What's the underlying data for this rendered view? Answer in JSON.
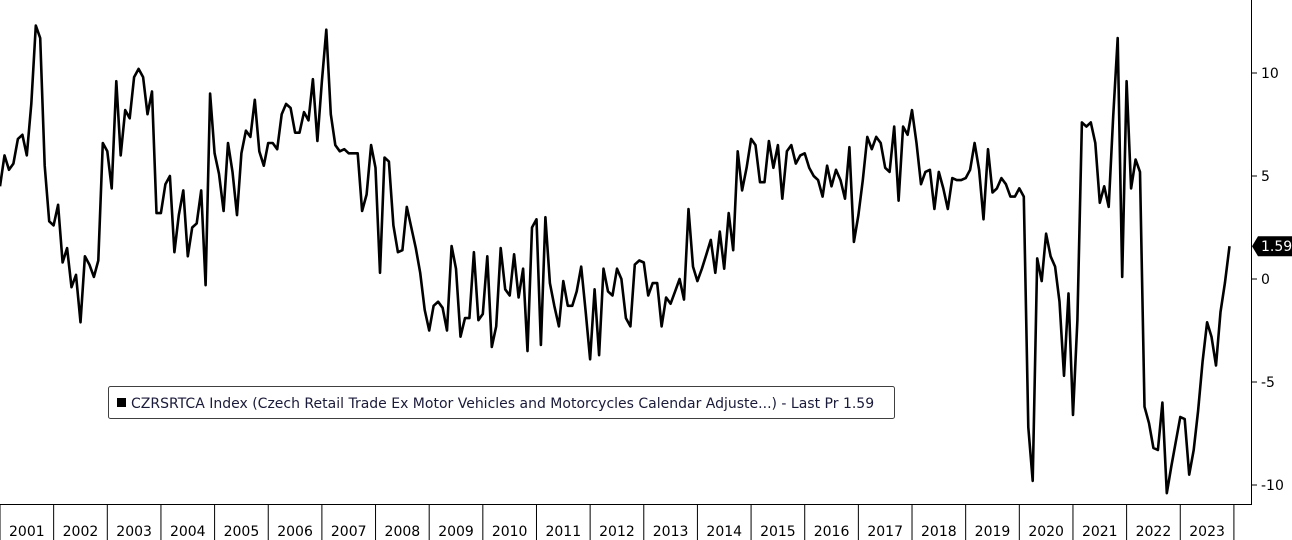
{
  "chart_data": {
    "type": "line",
    "title": "",
    "xlabel": "",
    "ylabel": "",
    "ylim": [
      -11,
      13.5
    ],
    "xlim": [
      2001.0,
      2024.3
    ],
    "grid": false,
    "y_ticks": [
      10,
      5,
      0,
      -5,
      -10
    ],
    "x_ticks": [
      "2001",
      "2002",
      "2003",
      "2004",
      "2005",
      "2006",
      "2007",
      "2008",
      "2009",
      "2010",
      "2011",
      "2012",
      "2013",
      "2014",
      "2015",
      "2016",
      "2017",
      "2018",
      "2019",
      "2020",
      "2021",
      "2022",
      "2023"
    ],
    "legend": {
      "placement": "lower-left",
      "label": "CZRSRTCA Index (Czech Retail Trade Ex Motor Vehicles and Motorcycles Calendar Adjuste...) - Last Pr 1.59"
    },
    "last_value_label": "1.59",
    "last_value": 1.59,
    "series": [
      {
        "name": "CZRSRTCA Index (Czech Retail Trade Ex Motor Vehicles and Motorcycles Calendar Adjuste...)",
        "color": "#000000",
        "x": [
          2001.0,
          2001.083,
          2001.167,
          2001.25,
          2001.333,
          2001.417,
          2001.5,
          2001.583,
          2001.667,
          2001.75,
          2001.833,
          2001.917,
          2002.0,
          2002.083,
          2002.167,
          2002.25,
          2002.333,
          2002.417,
          2002.5,
          2002.583,
          2002.667,
          2002.75,
          2002.833,
          2002.917,
          2003.0,
          2003.083,
          2003.167,
          2003.25,
          2003.333,
          2003.417,
          2003.5,
          2003.583,
          2003.667,
          2003.75,
          2003.833,
          2003.917,
          2004.0,
          2004.083,
          2004.167,
          2004.25,
          2004.333,
          2004.417,
          2004.5,
          2004.583,
          2004.667,
          2004.75,
          2004.833,
          2004.917,
          2005.0,
          2005.083,
          2005.167,
          2005.25,
          2005.333,
          2005.417,
          2005.5,
          2005.583,
          2005.667,
          2005.75,
          2005.833,
          2005.917,
          2006.0,
          2006.083,
          2006.167,
          2006.25,
          2006.333,
          2006.417,
          2006.5,
          2006.583,
          2006.667,
          2006.75,
          2006.833,
          2006.917,
          2007.0,
          2007.083,
          2007.167,
          2007.25,
          2007.333,
          2007.417,
          2007.5,
          2007.583,
          2007.667,
          2007.75,
          2007.833,
          2007.917,
          2008.0,
          2008.083,
          2008.167,
          2008.25,
          2008.333,
          2008.417,
          2008.5,
          2008.583,
          2008.667,
          2008.75,
          2008.833,
          2008.917,
          2009.0,
          2009.083,
          2009.167,
          2009.25,
          2009.333,
          2009.417,
          2009.5,
          2009.583,
          2009.667,
          2009.75,
          2009.833,
          2009.917,
          2010.0,
          2010.083,
          2010.167,
          2010.25,
          2010.333,
          2010.417,
          2010.5,
          2010.583,
          2010.667,
          2010.75,
          2010.833,
          2010.917,
          2011.0,
          2011.083,
          2011.167,
          2011.25,
          2011.333,
          2011.417,
          2011.5,
          2011.583,
          2011.667,
          2011.75,
          2011.833,
          2011.917,
          2012.0,
          2012.083,
          2012.167,
          2012.25,
          2012.333,
          2012.417,
          2012.5,
          2012.583,
          2012.667,
          2012.75,
          2012.833,
          2012.917,
          2013.0,
          2013.083,
          2013.167,
          2013.25,
          2013.333,
          2013.417,
          2013.5,
          2013.583,
          2013.667,
          2013.75,
          2013.833,
          2013.917,
          2014.0,
          2014.083,
          2014.167,
          2014.25,
          2014.333,
          2014.417,
          2014.5,
          2014.583,
          2014.667,
          2014.75,
          2014.833,
          2014.917,
          2015.0,
          2015.083,
          2015.167,
          2015.25,
          2015.333,
          2015.417,
          2015.5,
          2015.583,
          2015.667,
          2015.75,
          2015.833,
          2015.917,
          2016.0,
          2016.083,
          2016.167,
          2016.25,
          2016.333,
          2016.417,
          2016.5,
          2016.583,
          2016.667,
          2016.75,
          2016.833,
          2016.917,
          2017.0,
          2017.083,
          2017.167,
          2017.25,
          2017.333,
          2017.417,
          2017.5,
          2017.583,
          2017.667,
          2017.75,
          2017.833,
          2017.917,
          2018.0,
          2018.083,
          2018.167,
          2018.25,
          2018.333,
          2018.417,
          2018.5,
          2018.583,
          2018.667,
          2018.75,
          2018.833,
          2018.917,
          2019.0,
          2019.083,
          2019.167,
          2019.25,
          2019.333,
          2019.417,
          2019.5,
          2019.583,
          2019.667,
          2019.75,
          2019.833,
          2019.917,
          2020.0,
          2020.083,
          2020.167,
          2020.25,
          2020.333,
          2020.417,
          2020.5,
          2020.583,
          2020.667,
          2020.75,
          2020.833,
          2020.917,
          2021.0,
          2021.083,
          2021.167,
          2021.25,
          2021.333,
          2021.417,
          2021.5,
          2021.583,
          2021.667,
          2021.75,
          2021.833,
          2021.917,
          2022.0,
          2022.083,
          2022.167,
          2022.25,
          2022.333,
          2022.417,
          2022.5,
          2022.583,
          2022.667,
          2022.75,
          2022.833,
          2022.917,
          2023.0,
          2023.083,
          2023.167,
          2023.25,
          2023.333,
          2023.417,
          2023.5,
          2023.583,
          2023.667,
          2023.75,
          2023.833,
          2023.917
        ],
        "values": [
          4.5,
          6.0,
          5.3,
          5.6,
          6.8,
          7.0,
          6.0,
          8.5,
          12.3,
          11.7,
          5.5,
          2.8,
          2.6,
          3.6,
          0.8,
          1.5,
          -0.4,
          0.2,
          -2.1,
          1.1,
          0.7,
          0.1,
          0.9,
          6.6,
          6.2,
          4.4,
          9.6,
          6.0,
          8.2,
          7.8,
          9.8,
          10.2,
          9.8,
          8.0,
          9.1,
          3.2,
          3.2,
          4.6,
          5.0,
          1.3,
          3.1,
          4.3,
          1.1,
          2.5,
          2.7,
          4.3,
          -0.3,
          9.0,
          6.1,
          5.1,
          3.3,
          6.6,
          5.2,
          3.1,
          6.1,
          7.2,
          6.9,
          8.7,
          6.2,
          5.5,
          6.6,
          6.6,
          6.3,
          8.0,
          8.5,
          8.3,
          7.1,
          7.1,
          8.1,
          7.7,
          9.7,
          6.7,
          9.6,
          12.1,
          8.0,
          6.5,
          6.2,
          6.3,
          6.1,
          6.1,
          6.1,
          3.3,
          4.1,
          6.5,
          5.4,
          0.3,
          5.9,
          5.7,
          2.6,
          1.3,
          1.4,
          3.5,
          2.5,
          1.5,
          0.3,
          -1.5,
          -2.5,
          -1.3,
          -1.1,
          -1.4,
          -2.5,
          1.6,
          0.5,
          -2.8,
          -1.9,
          -1.9,
          1.3,
          -2.0,
          -1.7,
          1.1,
          -3.3,
          -2.3,
          1.5,
          -0.5,
          -0.8,
          1.2,
          -0.9,
          0.5,
          -3.5,
          2.5,
          2.9,
          -3.2,
          3.0,
          -0.2,
          -1.3,
          -2.3,
          -0.1,
          -1.3,
          -1.3,
          -0.6,
          0.6,
          -1.6,
          -3.9,
          -0.5,
          -3.7,
          0.5,
          -0.6,
          -0.8,
          0.5,
          0.0,
          -1.9,
          -2.3,
          0.7,
          0.9,
          0.8,
          -0.8,
          -0.2,
          -0.2,
          -2.3,
          -0.9,
          -1.2,
          -0.6,
          0.0,
          -1.0,
          3.4,
          0.6,
          -0.1,
          0.5,
          1.2,
          1.9,
          0.3,
          2.3,
          0.5,
          3.2,
          1.4,
          6.2,
          4.3,
          5.4,
          6.8,
          6.5,
          4.7,
          4.7,
          6.7,
          5.4,
          6.5,
          3.9,
          6.2,
          6.5,
          5.6,
          6.0,
          6.1,
          5.4,
          5.0,
          4.8,
          4.0,
          5.5,
          4.5,
          5.3,
          4.8,
          3.9,
          6.4,
          1.8,
          3.1,
          4.8,
          6.9,
          6.3,
          6.9,
          6.6,
          5.4,
          5.2,
          7.4,
          3.8,
          7.4,
          7.0,
          8.2,
          6.6,
          4.6,
          5.2,
          5.3,
          3.4,
          5.2,
          4.4,
          3.4,
          4.9,
          4.8,
          4.8,
          4.9,
          5.3,
          6.6,
          5.3,
          2.9,
          6.3,
          4.2,
          4.4,
          4.9,
          4.6,
          4.0,
          4.0,
          4.4,
          4.0,
          -7.2,
          -9.8,
          1.0,
          -0.1,
          2.2,
          1.1,
          0.6,
          -1.1,
          -4.7,
          -0.7,
          -6.6,
          -2.0,
          7.6,
          7.4,
          7.6,
          6.6,
          3.7,
          4.5,
          3.5,
          7.9,
          11.7,
          0.1,
          9.6,
          4.4,
          5.8,
          5.2,
          -6.2,
          -7.0,
          -8.2,
          -8.3,
          -6.0,
          -10.4,
          -9.1,
          -7.9,
          -6.7,
          -6.8,
          -9.5,
          -8.3,
          -6.4,
          -4.0,
          -2.1,
          -2.8,
          -4.2,
          -1.6,
          -0.2,
          1.59
        ]
      }
    ]
  }
}
